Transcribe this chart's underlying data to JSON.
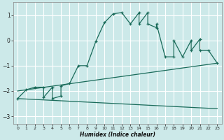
{
  "title": "",
  "xlabel": "Humidex (Indice chaleur)",
  "ylabel": "",
  "background_color": "#cce9e9",
  "grid_color": "#ffffff",
  "line_color": "#1a6b5a",
  "xlim": [
    -0.5,
    23.5
  ],
  "ylim": [
    -3.3,
    1.5
  ],
  "yticks": [
    -3,
    -2,
    -1,
    0,
    1
  ],
  "xticks": [
    0,
    1,
    2,
    3,
    4,
    5,
    6,
    7,
    8,
    9,
    10,
    11,
    12,
    13,
    14,
    15,
    16,
    17,
    18,
    19,
    20,
    21,
    22,
    23
  ],
  "series1_x": [
    0,
    1,
    2,
    3,
    3,
    4,
    4,
    5,
    5,
    6,
    7,
    8,
    9,
    10,
    11,
    12,
    13,
    14,
    14,
    15,
    15,
    16,
    16,
    17,
    18,
    18,
    19,
    20,
    20,
    21,
    21,
    22,
    23
  ],
  "series1_y": [
    -2.3,
    -1.95,
    -1.85,
    -1.85,
    -2.25,
    -1.85,
    -2.3,
    -2.2,
    -1.8,
    -1.7,
    -1.0,
    -1.0,
    -0.05,
    0.7,
    1.05,
    1.1,
    0.65,
    1.1,
    0.65,
    1.1,
    0.65,
    0.5,
    0.65,
    -0.65,
    -0.65,
    0.0,
    -0.65,
    0.0,
    -0.4,
    0.05,
    -0.4,
    -0.4,
    -0.9
  ],
  "series2_x": [
    0,
    23
  ],
  "series2_y": [
    -2.0,
    -0.9
  ],
  "series3_x": [
    0,
    23
  ],
  "series3_y": [
    -2.3,
    -2.7
  ]
}
